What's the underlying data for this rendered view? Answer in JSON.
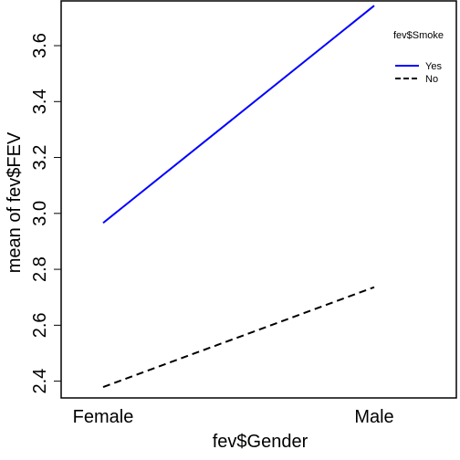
{
  "chart_data": {
    "type": "line",
    "title": "",
    "xlabel": "fev$Gender",
    "ylabel": "mean of  fev$FEV",
    "categories": [
      "Female",
      "Male"
    ],
    "ylim": [
      2.34,
      3.76
    ],
    "yticks": [
      2.4,
      2.6,
      2.8,
      3.0,
      3.2,
      3.4,
      3.6
    ],
    "ytick_labels": [
      "2.4",
      "2.6",
      "2.8",
      "3.0",
      "3.2",
      "3.4",
      "3.6"
    ],
    "legend": {
      "title": "fev$Smoke",
      "position": "top-right"
    },
    "series": [
      {
        "name": "Yes",
        "values": [
          2.966,
          3.743
        ],
        "color": "#0000ff",
        "dash": "solid"
      },
      {
        "name": "No",
        "values": [
          2.379,
          2.736
        ],
        "color": "#000000",
        "dash": "dashed"
      }
    ],
    "grid": false
  }
}
